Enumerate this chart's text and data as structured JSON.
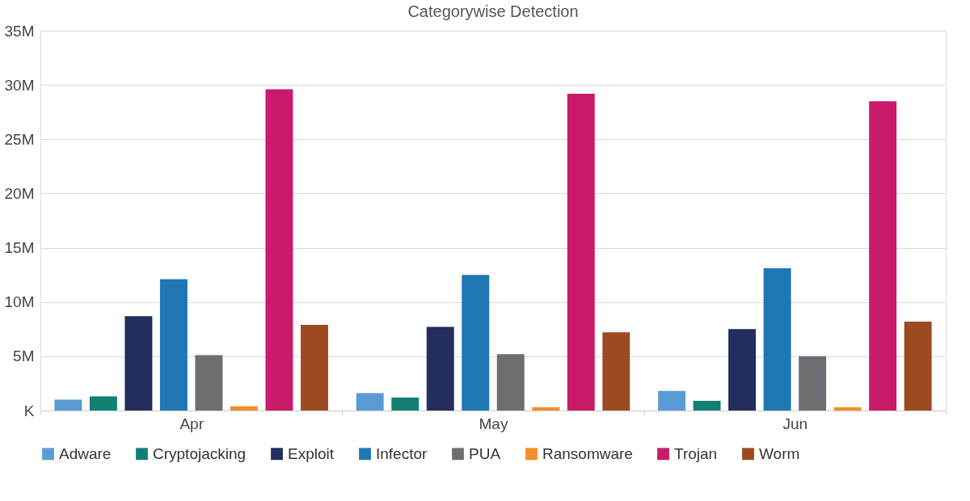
{
  "chart_data": {
    "type": "bar",
    "title": "Categorywise Detection",
    "categories": [
      "Apr",
      "May",
      "Jun"
    ],
    "series": [
      {
        "name": "Adware",
        "color": "#5b9bd5",
        "values": [
          1.0,
          1.6,
          1.8
        ]
      },
      {
        "name": "Cryptojacking",
        "color": "#138074",
        "values": [
          1.3,
          1.2,
          0.9
        ]
      },
      {
        "name": "Exploit",
        "color": "#232d5e",
        "values": [
          8.7,
          7.7,
          7.5
        ]
      },
      {
        "name": "Infector",
        "color": "#1f77b4",
        "values": [
          12.1,
          12.5,
          13.1
        ]
      },
      {
        "name": "PUA",
        "color": "#6d6e71",
        "values": [
          5.1,
          5.2,
          5.0
        ]
      },
      {
        "name": "Ransomware",
        "color": "#f28e2b",
        "values": [
          0.4,
          0.3,
          0.3
        ]
      },
      {
        "name": "Trojan",
        "color": "#c91b69",
        "values": [
          29.6,
          29.2,
          28.5
        ]
      },
      {
        "name": "Worm",
        "color": "#9c4a22",
        "values": [
          7.9,
          7.2,
          8.2
        ]
      }
    ],
    "ylim": [
      0,
      35
    ],
    "yticks": [
      {
        "value": 0,
        "label": "K"
      },
      {
        "value": 5,
        "label": "5M"
      },
      {
        "value": 10,
        "label": "10M"
      },
      {
        "value": 15,
        "label": "15M"
      },
      {
        "value": 20,
        "label": "20M"
      },
      {
        "value": 25,
        "label": "25M"
      },
      {
        "value": 30,
        "label": "30M"
      },
      {
        "value": 35,
        "label": "35M"
      }
    ],
    "grid": "y",
    "legend": "bottom"
  }
}
